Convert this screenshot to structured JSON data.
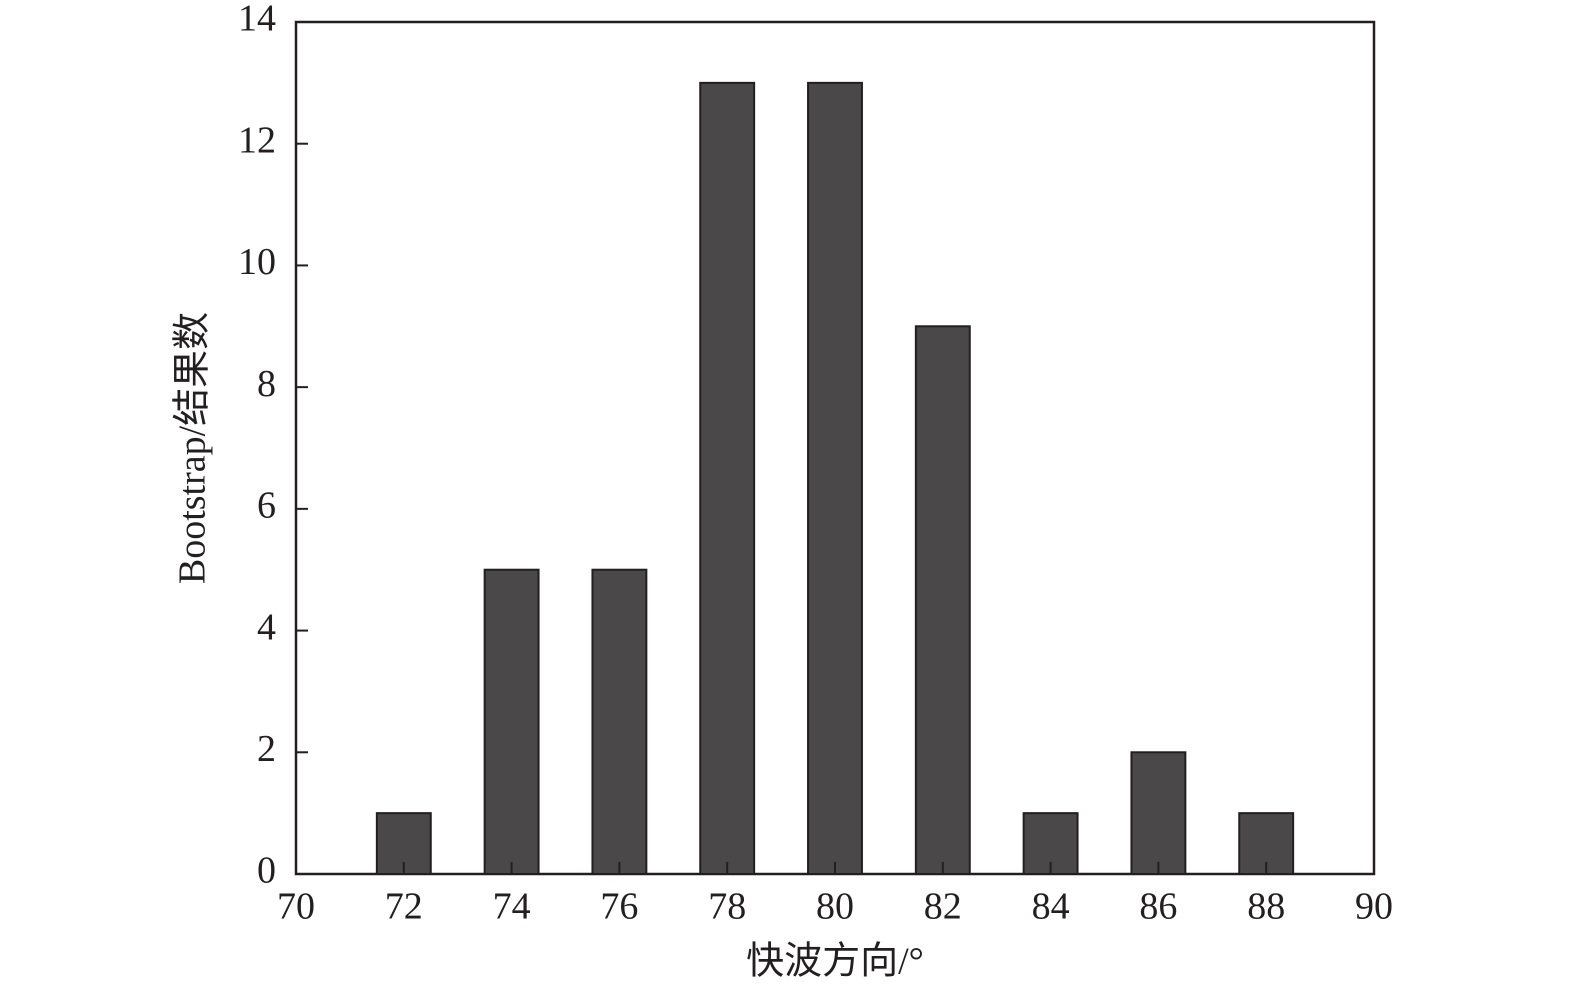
{
  "chart_data": {
    "type": "bar",
    "x": [
      72,
      74,
      76,
      78,
      80,
      82,
      84,
      86,
      88
    ],
    "values": [
      1,
      5,
      5,
      13,
      13,
      9,
      1,
      2,
      1
    ],
    "color": "#4a4849",
    "xlabel": "快波方向/°",
    "ylabel": "Bootstrap/结果数",
    "xlim": [
      70,
      90
    ],
    "xticks": [
      70,
      72,
      74,
      76,
      78,
      80,
      82,
      84,
      86,
      88,
      90
    ],
    "ylim": [
      0,
      14
    ],
    "yticks": [
      0,
      2,
      4,
      6,
      8,
      10,
      12,
      14
    ]
  }
}
